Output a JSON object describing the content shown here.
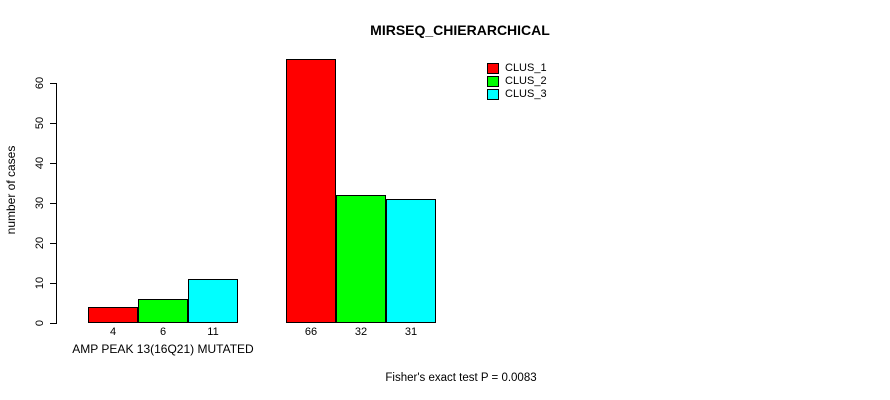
{
  "chart_data": {
    "type": "bar",
    "title": "MIRSEQ_CHIERARCHICAL",
    "ylabel": "number of cases",
    "yticks": [
      0,
      10,
      20,
      30,
      40,
      50,
      60
    ],
    "ylim": [
      0,
      66
    ],
    "grid": false,
    "legend_position": "top-right",
    "series": [
      {
        "name": "CLUS_1",
        "color": "#FF0000"
      },
      {
        "name": "CLUS_2",
        "color": "#00FF00"
      },
      {
        "name": "CLUS_3",
        "color": "#00FFFF"
      }
    ],
    "groups": [
      {
        "label": "AMP PEAK 13(16Q21) MUTATED",
        "values": [
          4,
          6,
          11
        ]
      },
      {
        "label": "",
        "values": [
          66,
          32,
          31
        ]
      }
    ],
    "value_labels": [
      [
        "4",
        "6",
        "11"
      ],
      [
        "66",
        "32",
        "31"
      ]
    ],
    "annotation": "Fisher's exact test P = 0.0083"
  }
}
